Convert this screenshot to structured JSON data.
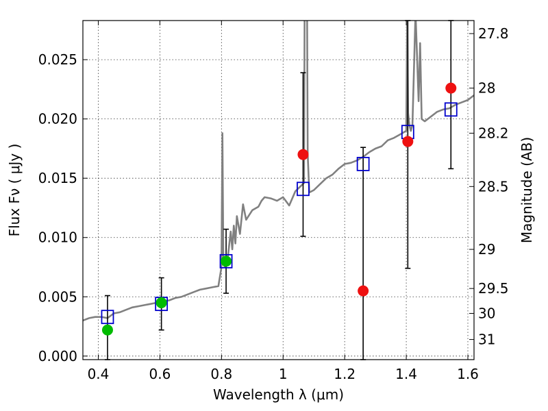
{
  "chart_data": {
    "type": "scatter",
    "xlabel": "Wavelength  λ (μm)",
    "ylabel": "Flux  Fν  ( μJy )",
    "y2label": "Magnitude (AB)",
    "xlim": [
      0.35,
      1.62
    ],
    "ylim": [
      -0.0003,
      0.0283
    ],
    "grid": true,
    "xticks": [
      0.4,
      0.6,
      0.8,
      1.0,
      1.2,
      1.4,
      1.6
    ],
    "xtick_labels": [
      "0.4",
      "0.6",
      "0.8",
      "1",
      "1.2",
      "1.4",
      "1.6"
    ],
    "yticks": [
      0.0,
      0.005,
      0.01,
      0.015,
      0.02,
      0.025
    ],
    "ytick_labels": [
      "0.000",
      "0.005",
      "0.010",
      "0.015",
      "0.020",
      "0.025"
    ],
    "y2ticks": [
      {
        "label": "27.8",
        "flux": 0.0272
      },
      {
        "label": "28",
        "flux": 0.0226
      },
      {
        "label": "28.2",
        "flux": 0.0188
      },
      {
        "label": "28.5",
        "flux": 0.0143
      },
      {
        "label": "29",
        "flux": 0.009
      },
      {
        "label": "29.5",
        "flux": 0.0057
      },
      {
        "label": "30",
        "flux": 0.0036
      },
      {
        "label": "31",
        "flux": 0.0014
      }
    ],
    "colors": {
      "spectrum": "#808080",
      "model_box": "#0000cc",
      "green_point": "#00bb00",
      "red_point": "#ee1111",
      "errorbar": "#000000"
    },
    "spectrum": {
      "x": [
        0.35,
        0.37,
        0.39,
        0.41,
        0.43,
        0.45,
        0.47,
        0.49,
        0.51,
        0.53,
        0.55,
        0.57,
        0.59,
        0.61,
        0.63,
        0.65,
        0.67,
        0.69,
        0.71,
        0.73,
        0.75,
        0.77,
        0.79,
        0.8,
        0.803,
        0.806,
        0.81,
        0.82,
        0.83,
        0.835,
        0.84,
        0.845,
        0.85,
        0.86,
        0.87,
        0.88,
        0.9,
        0.92,
        0.93,
        0.94,
        0.96,
        0.98,
        1.0,
        1.02,
        1.04,
        1.06,
        1.068,
        1.07,
        1.072,
        1.075,
        1.078,
        1.08,
        1.085,
        1.1,
        1.12,
        1.14,
        1.16,
        1.18,
        1.2,
        1.22,
        1.24,
        1.26,
        1.28,
        1.3,
        1.32,
        1.34,
        1.36,
        1.38,
        1.4,
        1.403,
        1.406,
        1.41,
        1.415,
        1.42,
        1.43,
        1.44,
        1.445,
        1.45,
        1.46,
        1.48,
        1.5,
        1.52,
        1.54,
        1.56,
        1.58,
        1.6,
        1.62
      ],
      "y": [
        0.003,
        0.0032,
        0.0033,
        0.0033,
        0.0032,
        0.0036,
        0.0037,
        0.0039,
        0.0041,
        0.0042,
        0.0043,
        0.0044,
        0.0045,
        0.0046,
        0.0047,
        0.0049,
        0.005,
        0.0052,
        0.0054,
        0.0056,
        0.0057,
        0.0058,
        0.0059,
        0.0075,
        0.0188,
        0.0085,
        0.0075,
        0.0082,
        0.0105,
        0.009,
        0.011,
        0.0095,
        0.0118,
        0.0103,
        0.0128,
        0.0115,
        0.0123,
        0.0126,
        0.0131,
        0.0134,
        0.0133,
        0.0131,
        0.0134,
        0.0127,
        0.0139,
        0.0144,
        0.0146,
        0.029,
        0.029,
        0.029,
        0.029,
        0.017,
        0.0138,
        0.014,
        0.0145,
        0.015,
        0.0153,
        0.0158,
        0.0162,
        0.0163,
        0.0165,
        0.0168,
        0.0172,
        0.0175,
        0.0177,
        0.0182,
        0.0184,
        0.0187,
        0.019,
        0.029,
        0.0205,
        0.0195,
        0.019,
        0.0195,
        0.029,
        0.0215,
        0.0264,
        0.02,
        0.0198,
        0.0202,
        0.0206,
        0.0208,
        0.0209,
        0.0212,
        0.0214,
        0.0216,
        0.022
      ]
    },
    "series": [
      {
        "kind": "model_box",
        "x": [
          0.43,
          0.605,
          0.815,
          1.065,
          1.26,
          1.405,
          1.545
        ],
        "y": [
          0.0033,
          0.0044,
          0.008,
          0.0141,
          0.0162,
          0.0189,
          0.0208
        ]
      },
      {
        "kind": "green_point",
        "x": [
          0.43,
          0.605,
          0.815
        ],
        "y": [
          0.0022,
          0.0045,
          0.008
        ]
      },
      {
        "kind": "red_point",
        "x": [
          1.065,
          1.26,
          1.405,
          1.545
        ],
        "y": [
          0.017,
          0.0055,
          0.0181,
          0.0226
        ]
      }
    ],
    "errorbars": [
      {
        "x": 0.43,
        "low": -0.0003,
        "high": 0.0051
      },
      {
        "x": 0.605,
        "low": 0.0022,
        "high": 0.0066
      },
      {
        "x": 0.815,
        "low": 0.0053,
        "high": 0.0107
      },
      {
        "x": 1.065,
        "low": 0.0101,
        "high": 0.0239
      },
      {
        "x": 1.26,
        "low": -0.0003,
        "high": 0.0176
      },
      {
        "x": 1.405,
        "low": 0.0074,
        "high": 0.0283
      },
      {
        "x": 1.545,
        "low": 0.0158,
        "high": 0.0283
      }
    ]
  }
}
